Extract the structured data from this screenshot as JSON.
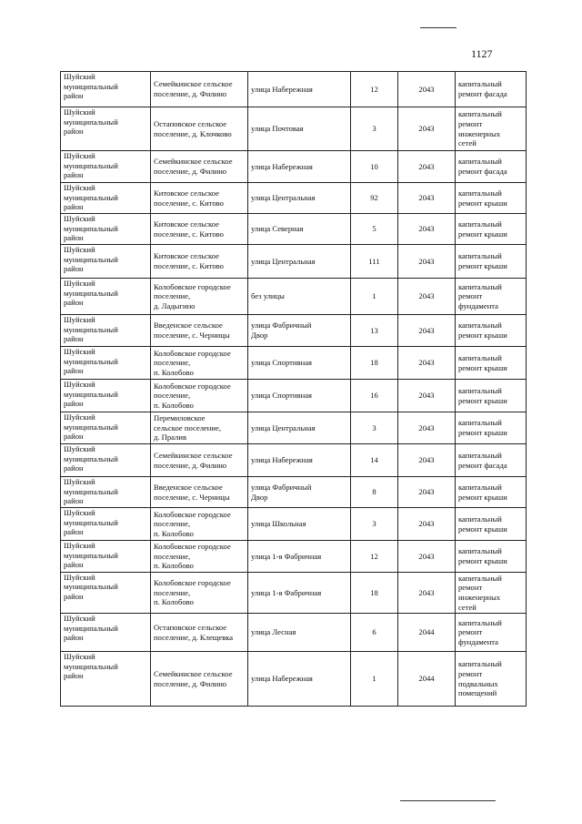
{
  "page_number": "1127",
  "rows": [
    {
      "district": "Шуйский\nмуниципальный\nрайон",
      "settlement": "Семейкинское сельское\nпоселение, д. Филино",
      "street": "улица Набережная",
      "house": "12",
      "year": "2043",
      "work": "капитальный\nремонт фасада"
    },
    {
      "district": "Шуйский\nмуниципальный\nрайон",
      "settlement": "Остаповское сельское\nпоселение, д. Клочково",
      "street": "улица Почтовая",
      "house": "3",
      "year": "2043",
      "work": "капитальный\nремонт\nинженерных\nсетей"
    },
    {
      "district": "Шуйский\nмуниципальный\nрайон",
      "settlement": "Семейкинское сельское\nпоселение, д. Филино",
      "street": "улица Набережная",
      "house": "10",
      "year": "2043",
      "work": "капитальный\nремонт фасада"
    },
    {
      "district": "Шуйский\nмуниципальный\nрайон",
      "settlement": "Китовское сельское\nпоселение, с. Китово",
      "street": "улица Центральная",
      "house": "92",
      "year": "2043",
      "work": "капитальный\nремонт крыши"
    },
    {
      "district": "Шуйский\nмуниципальный\nрайон",
      "settlement": "Китовское сельское\nпоселение, с. Китово",
      "street": "улица Северная",
      "house": "5",
      "year": "2043",
      "work": "капитальный\nремонт крыши"
    },
    {
      "district": "Шуйский\nмуниципальный\nрайон",
      "settlement": "Китовское сельское\nпоселение, с. Китово",
      "street": "улица Центральная",
      "house": "111",
      "year": "2043",
      "work": "капитальный\nремонт крыши"
    },
    {
      "district": "Шуйский\nмуниципальный\nрайон",
      "settlement": "Колобовское городское\nпоселение,\nд. Ладыгино",
      "street": "без улицы",
      "house": "1",
      "year": "2043",
      "work": "капитальный\nремонт\nфундамента"
    },
    {
      "district": "Шуйский\nмуниципальный\nрайон",
      "settlement": "Введенское сельское\nпоселение, с. Черницы",
      "street": "улица Фабричный\nДвор",
      "house": "13",
      "year": "2043",
      "work": "капитальный\nремонт крыши"
    },
    {
      "district": "Шуйский\nмуниципальный\nрайон",
      "settlement": "Колобовское городское\nпоселение,\nп. Колобово",
      "street": "улица Спортивная",
      "house": "18",
      "year": "2043",
      "work": "капитальный\nремонт крыши"
    },
    {
      "district": "Шуйский\nмуниципальный\nрайон",
      "settlement": "Колобовское городское\nпоселение,\nп. Колобово",
      "street": "улица Спортивная",
      "house": "16",
      "year": "2043",
      "work": "капитальный\nремонт крыши"
    },
    {
      "district": "Шуйский\nмуниципальный\nрайон",
      "settlement": "Перемиловское\nсельское поселение,\nд. Пралив",
      "street": "улица Центральная",
      "house": "3",
      "year": "2043",
      "work": "капитальный\nремонт крыши"
    },
    {
      "district": "Шуйский\nмуниципальный\nрайон",
      "settlement": "Семейкинское сельское\nпоселение, д. Филино",
      "street": "улица Набережная",
      "house": "14",
      "year": "2043",
      "work": "капитальный\nремонт фасада"
    },
    {
      "district": "Шуйский\nмуниципальный\nрайон",
      "settlement": "Введенское сельское\nпоселение, с. Черницы",
      "street": "улица Фабричный\nДвор",
      "house": "8",
      "year": "2043",
      "work": "капитальный\nремонт крыши"
    },
    {
      "district": "Шуйский\nмуниципальный\nрайон",
      "settlement": "Колобовское городское\nпоселение,\nп. Колобово",
      "street": "улица Школьная",
      "house": "3",
      "year": "2043",
      "work": "капитальный\nремонт крыши"
    },
    {
      "district": "Шуйский\nмуниципальный\nрайон",
      "settlement": "Колобовское городское\nпоселение,\nп. Колобово",
      "street": "улица 1-я Фабричная",
      "house": "12",
      "year": "2043",
      "work": "капитальный\nремонт крыши"
    },
    {
      "district": "Шуйский\nмуниципальный\nрайон",
      "settlement": "Колобовское городское\nпоселение,\nп. Колобово",
      "street": "улица 1-я Фабричная",
      "house": "18",
      "year": "2043",
      "work": "капитальный\nремонт\nинженерных\nсетей"
    },
    {
      "district": "Шуйский\nмуниципальный\nрайон",
      "settlement": "Остаповское сельское\nпоселение, д. Клещевка",
      "street": "улица Лесная",
      "house": "6",
      "year": "2044",
      "work": "капитальный\nремонт\nфундамента"
    },
    {
      "district": "Шуйский\nмуниципальный\nрайон",
      "settlement": "Семейкинское сельское\nпоселение, д. Филино",
      "street": "улица Набережная",
      "house": "1",
      "year": "2044",
      "work": "капитальный\nремонт\nподвальных\nпомещений"
    }
  ]
}
